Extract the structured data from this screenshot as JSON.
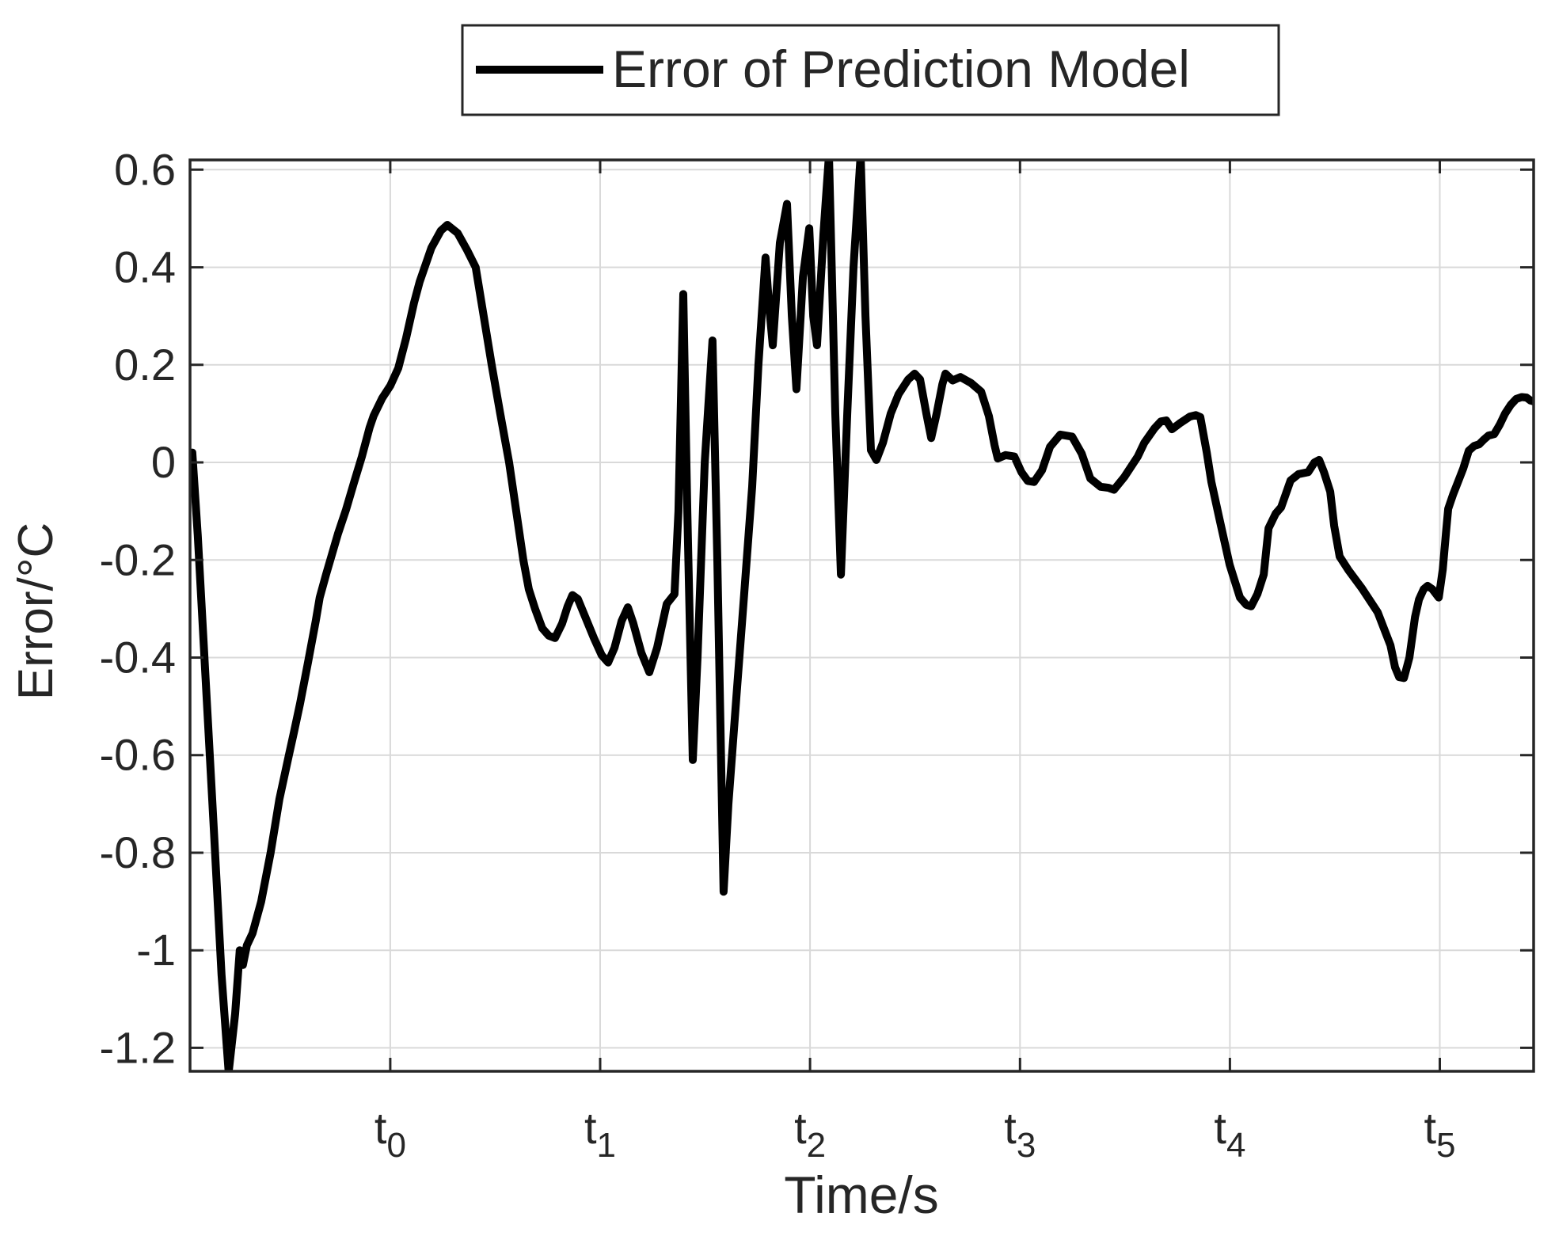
{
  "colors": {
    "background": "#ffffff",
    "axis": "#262626",
    "grid": "#d9d9d9",
    "line": "#000000",
    "legend_border": "#262626"
  },
  "chart_data": {
    "type": "line",
    "title": "",
    "xlabel": "Time/s",
    "ylabel": "Error/°C",
    "legend": [
      "Error of Prediction Model"
    ],
    "legend_position": "top-center",
    "grid": true,
    "xlim": [
      -0.954,
      5.447
    ],
    "ylim": [
      -1.248,
      0.62
    ],
    "x_ticks": [
      {
        "base": "t",
        "sub": "0",
        "value": 0
      },
      {
        "base": "t",
        "sub": "1",
        "value": 1
      },
      {
        "base": "t",
        "sub": "2",
        "value": 2
      },
      {
        "base": "t",
        "sub": "3",
        "value": 3
      },
      {
        "base": "t",
        "sub": "4",
        "value": 4
      },
      {
        "base": "t",
        "sub": "5",
        "value": 5
      }
    ],
    "y_ticks": [
      {
        "label": "0.6",
        "value": 0.6
      },
      {
        "label": "0.4",
        "value": 0.4
      },
      {
        "label": "0.2",
        "value": 0.2
      },
      {
        "label": "0",
        "value": 0
      },
      {
        "label": "-0.2",
        "value": -0.2
      },
      {
        "label": "-0.4",
        "value": -0.4
      },
      {
        "label": "-0.6",
        "value": -0.6
      },
      {
        "label": "-0.8",
        "value": -0.8
      },
      {
        "label": "-1",
        "value": -1
      },
      {
        "label": "-1.2",
        "value": -1.2
      }
    ],
    "series": [
      {
        "name": "Error of Prediction Model",
        "color": "#000000",
        "line_width": 10,
        "points": [
          [
            -0.954,
            0.005
          ],
          [
            -0.943,
            0.02
          ],
          [
            -0.917,
            -0.15
          ],
          [
            -0.879,
            -0.45
          ],
          [
            -0.841,
            -0.75
          ],
          [
            -0.804,
            -1.05
          ],
          [
            -0.77,
            -1.25
          ],
          [
            -0.739,
            -1.13
          ],
          [
            -0.717,
            -1.0
          ],
          [
            -0.702,
            -1.03
          ],
          [
            -0.683,
            -0.99
          ],
          [
            -0.656,
            -0.965
          ],
          [
            -0.615,
            -0.9
          ],
          [
            -0.57,
            -0.8
          ],
          [
            -0.528,
            -0.69
          ],
          [
            -0.483,
            -0.6
          ],
          [
            -0.46,
            -0.555
          ],
          [
            -0.43,
            -0.495
          ],
          [
            -0.392,
            -0.41
          ],
          [
            -0.355,
            -0.325
          ],
          [
            -0.336,
            -0.277
          ],
          [
            -0.306,
            -0.23
          ],
          [
            -0.272,
            -0.18
          ],
          [
            -0.249,
            -0.146
          ],
          [
            -0.211,
            -0.097
          ],
          [
            -0.174,
            -0.043
          ],
          [
            -0.136,
            0.011
          ],
          [
            -0.098,
            0.072
          ],
          [
            -0.079,
            0.096
          ],
          [
            -0.038,
            0.132
          ],
          [
            0,
            0.157
          ],
          [
            0.038,
            0.193
          ],
          [
            0.075,
            0.254
          ],
          [
            0.113,
            0.327
          ],
          [
            0.14,
            0.37
          ],
          [
            0.196,
            0.44
          ],
          [
            0.241,
            0.475
          ],
          [
            0.272,
            0.487
          ],
          [
            0.321,
            0.47
          ],
          [
            0.366,
            0.435
          ],
          [
            0.407,
            0.4
          ],
          [
            0.445,
            0.3
          ],
          [
            0.483,
            0.2
          ],
          [
            0.524,
            0.1
          ],
          [
            0.566,
            0.0
          ],
          [
            0.6,
            -0.1
          ],
          [
            0.634,
            -0.2
          ],
          [
            0.66,
            -0.26
          ],
          [
            0.69,
            -0.3
          ],
          [
            0.724,
            -0.34
          ],
          [
            0.755,
            -0.355
          ],
          [
            0.785,
            -0.36
          ],
          [
            0.819,
            -0.33
          ],
          [
            0.845,
            -0.295
          ],
          [
            0.868,
            -0.272
          ],
          [
            0.894,
            -0.28
          ],
          [
            0.932,
            -0.32
          ],
          [
            0.97,
            -0.36
          ],
          [
            1.007,
            -0.395
          ],
          [
            1.038,
            -0.41
          ],
          [
            1.068,
            -0.38
          ],
          [
            1.102,
            -0.325
          ],
          [
            1.132,
            -0.297
          ],
          [
            1.158,
            -0.33
          ],
          [
            1.196,
            -0.39
          ],
          [
            1.234,
            -0.43
          ],
          [
            1.271,
            -0.38
          ],
          [
            1.317,
            -0.29
          ],
          [
            1.354,
            -0.27
          ],
          [
            1.373,
            -0.1
          ],
          [
            1.396,
            0.345
          ],
          [
            1.415,
            -0.1
          ],
          [
            1.441,
            -0.61
          ],
          [
            1.464,
            -0.4
          ],
          [
            1.498,
            0.0
          ],
          [
            1.535,
            0.25
          ],
          [
            1.558,
            -0.2
          ],
          [
            1.588,
            -0.88
          ],
          [
            1.611,
            -0.7
          ],
          [
            1.649,
            -0.48
          ],
          [
            1.686,
            -0.27
          ],
          [
            1.724,
            -0.05
          ],
          [
            1.754,
            0.2
          ],
          [
            1.788,
            0.42
          ],
          [
            1.803,
            0.33
          ],
          [
            1.822,
            0.24
          ],
          [
            1.856,
            0.45
          ],
          [
            1.89,
            0.53
          ],
          [
            1.913,
            0.3
          ],
          [
            1.935,
            0.15
          ],
          [
            1.966,
            0.38
          ],
          [
            1.996,
            0.48
          ],
          [
            2.015,
            0.3
          ],
          [
            2.033,
            0.24
          ],
          [
            2.064,
            0.47
          ],
          [
            2.09,
            0.63
          ],
          [
            2.12,
            0.1
          ],
          [
            2.147,
            -0.23
          ],
          [
            2.177,
            0.1
          ],
          [
            2.207,
            0.4
          ],
          [
            2.241,
            0.63
          ],
          [
            2.264,
            0.3
          ],
          [
            2.29,
            0.025
          ],
          [
            2.316,
            0.005
          ],
          [
            2.347,
            0.04
          ],
          [
            2.384,
            0.1
          ],
          [
            2.422,
            0.14
          ],
          [
            2.467,
            0.17
          ],
          [
            2.498,
            0.182
          ],
          [
            2.524,
            0.17
          ],
          [
            2.554,
            0.1
          ],
          [
            2.577,
            0.05
          ],
          [
            2.603,
            0.1
          ],
          [
            2.63,
            0.16
          ],
          [
            2.645,
            0.182
          ],
          [
            2.679,
            0.168
          ],
          [
            2.716,
            0.175
          ],
          [
            2.766,
            0.163
          ],
          [
            2.815,
            0.145
          ],
          [
            2.852,
            0.095
          ],
          [
            2.879,
            0.035
          ],
          [
            2.894,
            0.008
          ],
          [
            2.931,
            0.015
          ],
          [
            2.973,
            0.012
          ],
          [
            3.007,
            -0.02
          ],
          [
            3.037,
            -0.038
          ],
          [
            3.067,
            -0.04
          ],
          [
            3.105,
            -0.016
          ],
          [
            3.143,
            0.032
          ],
          [
            3.192,
            0.057
          ],
          [
            3.248,
            0.053
          ],
          [
            3.294,
            0.018
          ],
          [
            3.335,
            -0.033
          ],
          [
            3.384,
            -0.05
          ],
          [
            3.422,
            -0.052
          ],
          [
            3.448,
            -0.056
          ],
          [
            3.497,
            -0.03
          ],
          [
            3.561,
            0.012
          ],
          [
            3.592,
            0.04
          ],
          [
            3.641,
            0.07
          ],
          [
            3.671,
            0.084
          ],
          [
            3.697,
            0.086
          ],
          [
            3.724,
            0.068
          ],
          [
            3.761,
            0.08
          ],
          [
            3.81,
            0.094
          ],
          [
            3.837,
            0.097
          ],
          [
            3.859,
            0.093
          ],
          [
            3.89,
            0.02
          ],
          [
            3.912,
            -0.04
          ],
          [
            3.95,
            -0.115
          ],
          [
            3.999,
            -0.21
          ],
          [
            4.048,
            -0.277
          ],
          [
            4.078,
            -0.292
          ],
          [
            4.101,
            -0.295
          ],
          [
            4.131,
            -0.27
          ],
          [
            4.161,
            -0.23
          ],
          [
            4.184,
            -0.135
          ],
          [
            4.218,
            -0.105
          ],
          [
            4.244,
            -0.092
          ],
          [
            4.289,
            -0.037
          ],
          [
            4.327,
            -0.024
          ],
          [
            4.373,
            -0.02
          ],
          [
            4.403,
            0.0
          ],
          [
            4.425,
            0.005
          ],
          [
            4.448,
            -0.02
          ],
          [
            4.478,
            -0.06
          ],
          [
            4.497,
            -0.13
          ],
          [
            4.523,
            -0.193
          ],
          [
            4.565,
            -0.221
          ],
          [
            4.629,
            -0.258
          ],
          [
            4.704,
            -0.307
          ],
          [
            4.765,
            -0.375
          ],
          [
            4.787,
            -0.42
          ],
          [
            4.806,
            -0.44
          ],
          [
            4.829,
            -0.442
          ],
          [
            4.855,
            -0.4
          ],
          [
            4.882,
            -0.317
          ],
          [
            4.901,
            -0.281
          ],
          [
            4.923,
            -0.26
          ],
          [
            4.942,
            -0.253
          ],
          [
            4.965,
            -0.26
          ],
          [
            4.995,
            -0.277
          ],
          [
            5.014,
            -0.22
          ],
          [
            5.029,
            -0.146
          ],
          [
            5.04,
            -0.095
          ],
          [
            5.063,
            -0.066
          ],
          [
            5.085,
            -0.042
          ],
          [
            5.112,
            -0.012
          ],
          [
            5.138,
            0.024
          ],
          [
            5.164,
            0.034
          ],
          [
            5.187,
            0.037
          ],
          [
            5.21,
            0.047
          ],
          [
            5.232,
            0.055
          ],
          [
            5.259,
            0.058
          ],
          [
            5.285,
            0.077
          ],
          [
            5.311,
            0.1
          ],
          [
            5.338,
            0.118
          ],
          [
            5.364,
            0.13
          ],
          [
            5.39,
            0.134
          ],
          [
            5.413,
            0.133
          ],
          [
            5.432,
            0.127
          ],
          [
            5.447,
            0.125
          ]
        ]
      }
    ]
  }
}
